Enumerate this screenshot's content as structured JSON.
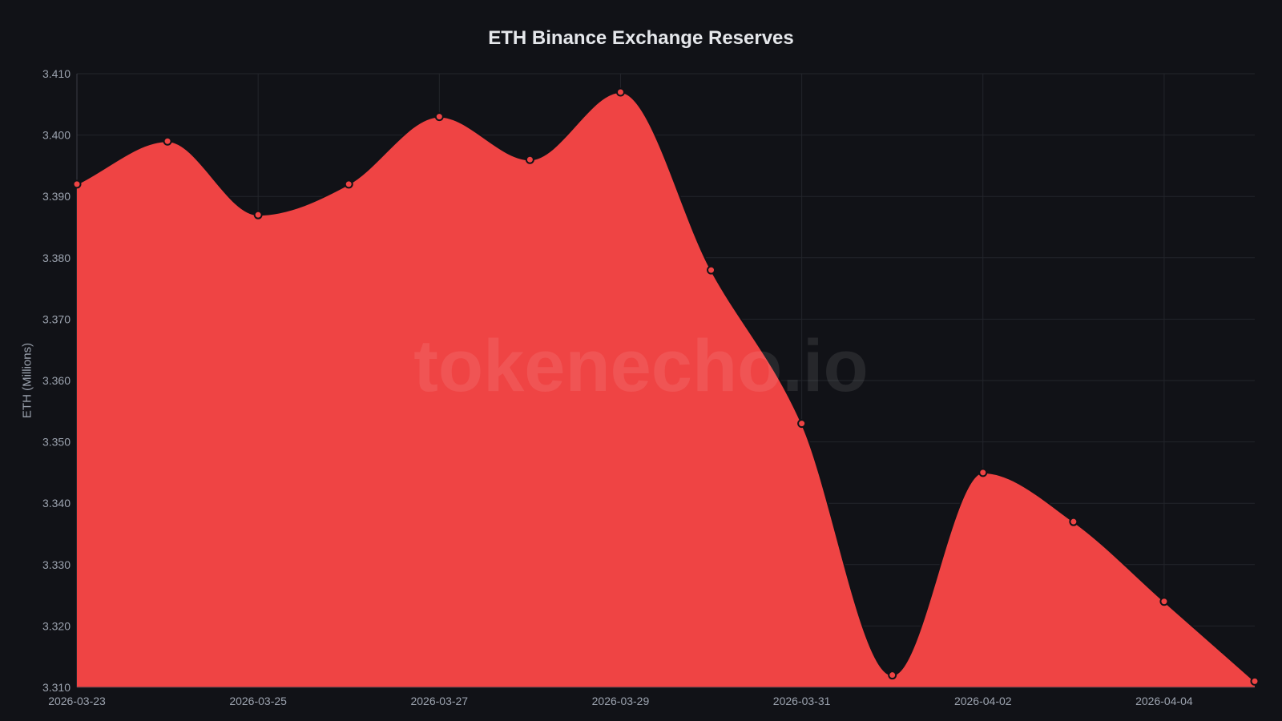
{
  "chart_data": {
    "type": "area",
    "title": "ETH Binance Exchange Reserves",
    "xlabel": "",
    "ylabel": "ETH (Millions)",
    "x": [
      "2026-03-23",
      "2026-03-24",
      "2026-03-25",
      "2026-03-26",
      "2026-03-27",
      "2026-03-28",
      "2026-03-29",
      "2026-03-30",
      "2026-03-31",
      "2026-04-01",
      "2026-04-02",
      "2026-04-03",
      "2026-04-04",
      "2026-04-05"
    ],
    "values": [
      3.392,
      3.399,
      3.387,
      3.392,
      3.403,
      3.396,
      3.407,
      3.378,
      3.353,
      3.312,
      3.345,
      3.337,
      3.324,
      3.311
    ],
    "x_ticks": [
      "2026-03-23",
      "2026-03-25",
      "2026-03-27",
      "2026-03-29",
      "2026-03-31",
      "2026-04-02",
      "2026-04-04"
    ],
    "y_ticks": [
      "3.310",
      "3.320",
      "3.330",
      "3.340",
      "3.350",
      "3.360",
      "3.370",
      "3.380",
      "3.390",
      "3.400",
      "3.410"
    ],
    "ylim": [
      3.31,
      3.41
    ],
    "grid": true,
    "legend": "none",
    "colors": {
      "fill": "#ef4444",
      "background": "#111217",
      "grid": "#23252b",
      "point_border": "#111217"
    }
  },
  "watermark": "tokenecho.io"
}
